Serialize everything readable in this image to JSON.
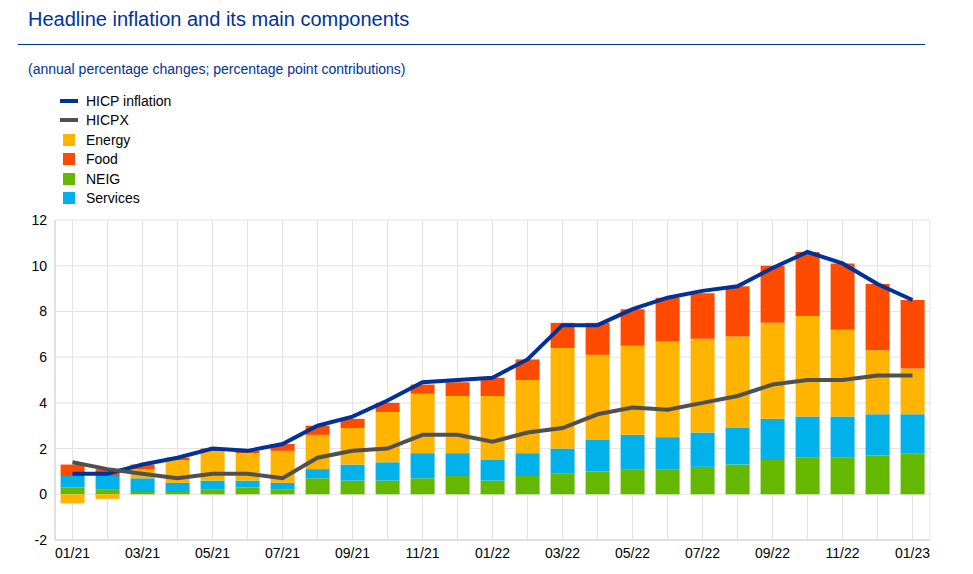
{
  "chart_data": {
    "type": "bar",
    "title": "Headline inflation and its main components",
    "subtitle": "(annual percentage changes; percentage point contributions)",
    "categories": [
      "01/21",
      null,
      "03/21",
      null,
      "05/21",
      null,
      "07/21",
      null,
      "09/21",
      null,
      "11/21",
      null,
      "01/22",
      null,
      "03/22",
      null,
      "05/22",
      null,
      "07/22",
      null,
      "09/22",
      null,
      "11/22",
      null,
      "01/23"
    ],
    "stacked": true,
    "grid": true,
    "ylim": [
      -2,
      12
    ],
    "yticks": [
      -2,
      0,
      2,
      4,
      6,
      8,
      10,
      12
    ],
    "series": [
      {
        "name": "HICP inflation",
        "type": "line",
        "color": "#003299",
        "values": [
          0.9,
          0.9,
          1.3,
          1.6,
          2.0,
          1.9,
          2.2,
          3.0,
          3.4,
          4.1,
          4.9,
          5.0,
          5.1,
          5.9,
          7.4,
          7.4,
          8.1,
          8.6,
          8.9,
          9.1,
          9.9,
          10.6,
          10.1,
          9.2,
          8.5
        ]
      },
      {
        "name": "HICPX",
        "type": "line",
        "color": "#505050",
        "values": [
          1.4,
          1.1,
          0.9,
          0.7,
          0.9,
          0.9,
          0.7,
          1.6,
          1.9,
          2.0,
          2.6,
          2.6,
          2.3,
          2.7,
          2.9,
          3.5,
          3.8,
          3.7,
          4.0,
          4.3,
          4.8,
          5.0,
          5.0,
          5.2,
          5.2
        ]
      },
      {
        "name": "Energy",
        "type": "bar",
        "color": "#FFB400",
        "values": [
          -0.4,
          -0.2,
          0.4,
          1.0,
          1.3,
          1.2,
          1.4,
          1.5,
          1.6,
          2.2,
          2.6,
          2.5,
          2.8,
          3.2,
          4.4,
          3.7,
          3.9,
          4.2,
          4.1,
          4.0,
          4.2,
          4.4,
          3.8,
          2.8,
          2.0
        ]
      },
      {
        "name": "Food",
        "type": "bar",
        "color": "#FF4B00",
        "values": [
          0.5,
          0.3,
          0.2,
          0.1,
          0.1,
          0.1,
          0.3,
          0.4,
          0.4,
          0.4,
          0.4,
          0.6,
          0.8,
          0.9,
          1.1,
          1.4,
          1.6,
          1.9,
          2.0,
          2.2,
          2.5,
          2.8,
          2.9,
          2.9,
          3.0
        ]
      },
      {
        "name": "NEIG",
        "type": "bar",
        "color": "#65B800",
        "values": [
          0.3,
          0.2,
          0.1,
          0.1,
          0.2,
          0.3,
          0.2,
          0.7,
          0.6,
          0.6,
          0.7,
          0.8,
          0.6,
          0.8,
          0.9,
          1.0,
          1.1,
          1.1,
          1.2,
          1.3,
          1.5,
          1.6,
          1.6,
          1.7,
          1.8
        ]
      },
      {
        "name": "Services",
        "type": "bar",
        "color": "#00B1EA",
        "values": [
          0.5,
          0.6,
          0.6,
          0.4,
          0.4,
          0.3,
          0.3,
          0.4,
          0.7,
          0.8,
          1.1,
          1.0,
          0.9,
          1.0,
          1.1,
          1.4,
          1.5,
          1.4,
          1.5,
          1.6,
          1.8,
          1.8,
          1.8,
          1.8,
          1.7
        ]
      }
    ]
  }
}
